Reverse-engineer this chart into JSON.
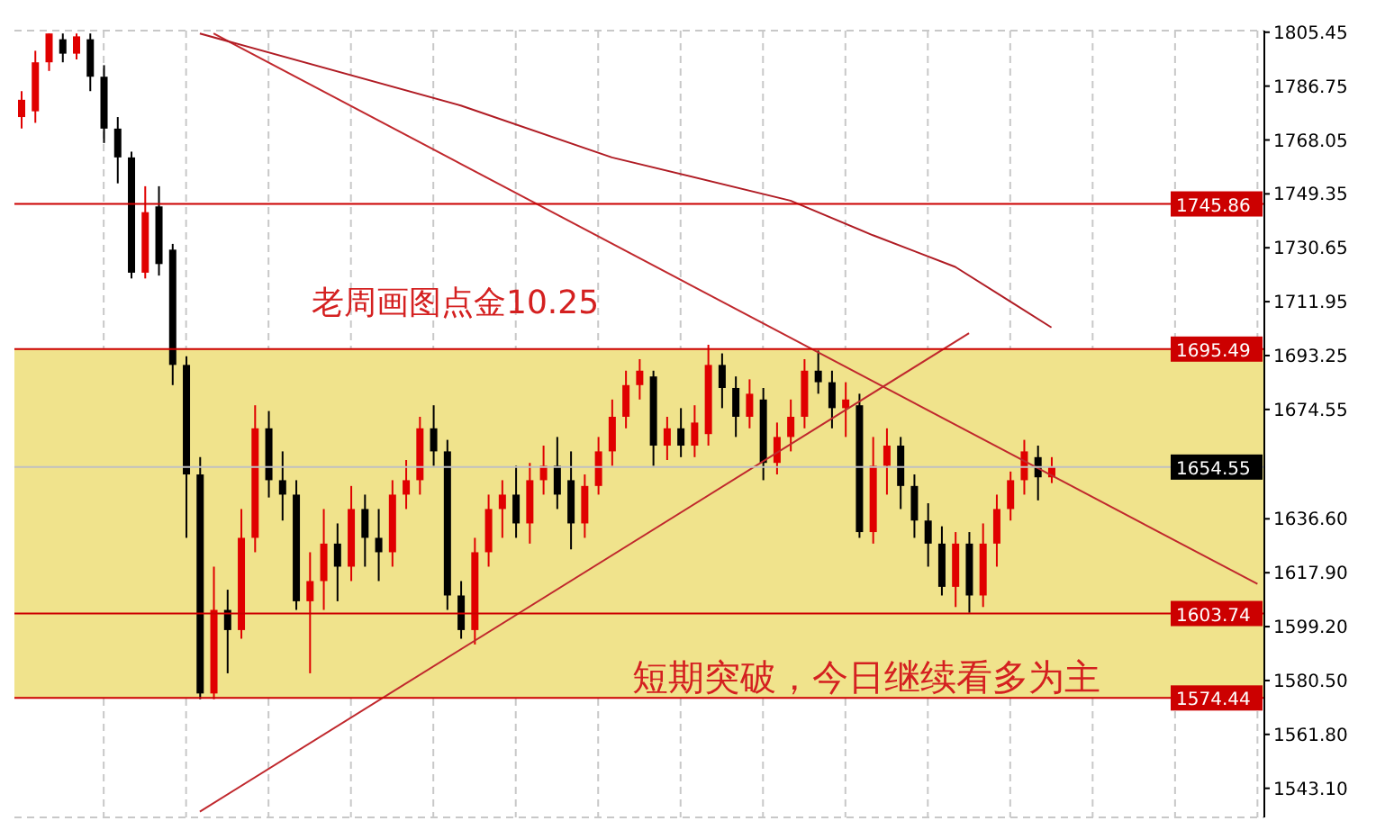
{
  "chart_data": {
    "type": "candlestick",
    "categories": [
      null,
      null,
      null,
      null,
      null,
      null,
      null,
      null,
      null,
      null,
      null,
      null,
      null,
      null,
      null,
      null,
      null,
      null,
      null,
      null,
      null,
      null,
      null,
      null,
      null,
      null,
      null,
      null,
      null,
      null,
      null,
      null,
      null,
      null,
      null,
      null,
      null,
      null,
      null,
      null,
      null,
      null,
      null,
      null,
      null,
      null,
      null,
      null,
      null,
      null,
      null,
      null,
      null,
      null,
      null,
      null,
      null,
      null,
      null,
      null,
      null,
      null,
      null,
      null,
      null,
      null,
      null,
      null,
      null,
      null,
      null,
      null,
      null,
      null,
      null,
      null,
      null,
      null,
      null,
      null,
      null,
      null,
      null,
      null,
      null,
      null,
      null,
      null,
      null,
      null,
      null
    ],
    "ohlc": [
      [
        1776,
        1785,
        1772,
        1782
      ],
      [
        1778,
        1799,
        1774,
        1795
      ],
      [
        1795,
        1805,
        1792,
        1805
      ],
      [
        1803,
        1805,
        1795,
        1798
      ],
      [
        1798,
        1805,
        1796,
        1804
      ],
      [
        1803,
        1805,
        1785,
        1790
      ],
      [
        1790,
        1794,
        1767,
        1772
      ],
      [
        1772,
        1776,
        1753,
        1762
      ],
      [
        1762,
        1764,
        1720,
        1722
      ],
      [
        1722,
        1752,
        1720,
        1743
      ],
      [
        1745,
        1752,
        1721,
        1725
      ],
      [
        1730,
        1732,
        1683,
        1690
      ],
      [
        1690,
        1693,
        1630,
        1652
      ],
      [
        1652,
        1658,
        1574,
        1576
      ],
      [
        1576,
        1620,
        1574,
        1605
      ],
      [
        1605,
        1612,
        1583,
        1598
      ],
      [
        1598,
        1640,
        1595,
        1630
      ],
      [
        1630,
        1676,
        1625,
        1668
      ],
      [
        1668,
        1674,
        1644,
        1650
      ],
      [
        1650,
        1660,
        1636,
        1645
      ],
      [
        1645,
        1650,
        1605,
        1608
      ],
      [
        1608,
        1625,
        1583,
        1615
      ],
      [
        1615,
        1640,
        1605,
        1628
      ],
      [
        1628,
        1635,
        1608,
        1620
      ],
      [
        1620,
        1648,
        1615,
        1640
      ],
      [
        1640,
        1645,
        1620,
        1630
      ],
      [
        1630,
        1640,
        1615,
        1625
      ],
      [
        1625,
        1650,
        1620,
        1645
      ],
      [
        1645,
        1657,
        1640,
        1650
      ],
      [
        1650,
        1672,
        1645,
        1668
      ],
      [
        1668,
        1676,
        1655,
        1660
      ],
      [
        1660,
        1664,
        1605,
        1610
      ],
      [
        1610,
        1615,
        1595,
        1598
      ],
      [
        1598,
        1630,
        1593,
        1625
      ],
      [
        1625,
        1645,
        1620,
        1640
      ],
      [
        1640,
        1650,
        1630,
        1645
      ],
      [
        1645,
        1655,
        1630,
        1635
      ],
      [
        1635,
        1656,
        1628,
        1650
      ],
      [
        1650,
        1662,
        1645,
        1655
      ],
      [
        1655,
        1665,
        1640,
        1645
      ],
      [
        1650,
        1660,
        1626,
        1635
      ],
      [
        1635,
        1652,
        1630,
        1648
      ],
      [
        1648,
        1665,
        1645,
        1660
      ],
      [
        1660,
        1678,
        1655,
        1672
      ],
      [
        1672,
        1688,
        1668,
        1683
      ],
      [
        1683,
        1692,
        1678,
        1688
      ],
      [
        1686,
        1688,
        1655,
        1662
      ],
      [
        1662,
        1672,
        1657,
        1668
      ],
      [
        1668,
        1675,
        1658,
        1662
      ],
      [
        1662,
        1676,
        1658,
        1670
      ],
      [
        1666,
        1697,
        1662,
        1690
      ],
      [
        1690,
        1694,
        1675,
        1682
      ],
      [
        1682,
        1686,
        1665,
        1672
      ],
      [
        1672,
        1685,
        1668,
        1680
      ],
      [
        1678,
        1682,
        1650,
        1656
      ],
      [
        1656,
        1670,
        1652,
        1665
      ],
      [
        1665,
        1678,
        1660,
        1672
      ],
      [
        1672,
        1692,
        1668,
        1688
      ],
      [
        1688,
        1695,
        1680,
        1684
      ],
      [
        1684,
        1688,
        1668,
        1675
      ],
      [
        1675,
        1684,
        1665,
        1678
      ],
      [
        1676,
        1680,
        1630,
        1632
      ],
      [
        1632,
        1665,
        1628,
        1655
      ],
      [
        1655,
        1668,
        1645,
        1662
      ],
      [
        1662,
        1665,
        1640,
        1648
      ],
      [
        1648,
        1652,
        1630,
        1636
      ],
      [
        1636,
        1642,
        1620,
        1628
      ],
      [
        1628,
        1634,
        1610,
        1613
      ],
      [
        1613,
        1632,
        1606,
        1628
      ],
      [
        1628,
        1632,
        1604,
        1610
      ],
      [
        1610,
        1635,
        1606,
        1628
      ],
      [
        1628,
        1645,
        1620,
        1640
      ],
      [
        1640,
        1653,
        1636,
        1650
      ],
      [
        1650,
        1664,
        1645,
        1660
      ],
      [
        1658,
        1662,
        1643,
        1651
      ],
      [
        1651,
        1658,
        1649,
        1654.55
      ],
      null,
      null,
      null,
      null,
      null,
      null,
      null,
      null,
      null,
      null,
      null,
      null,
      null,
      null,
      null
    ],
    "colors": [
      "#e00000",
      "#e00000",
      "#e00000",
      "#000000",
      "#e00000",
      "#000000",
      "#000000",
      "#000000",
      "#000000",
      "#e00000",
      "#000000",
      "#000000",
      "#000000",
      "#000000",
      "#e00000",
      "#000000",
      "#e00000",
      "#e00000",
      "#000000",
      "#000000",
      "#000000",
      "#e00000",
      "#e00000",
      "#000000",
      "#e00000",
      "#000000",
      "#000000",
      "#e00000",
      "#e00000",
      "#e00000",
      "#000000",
      "#000000",
      "#000000",
      "#e00000",
      "#e00000",
      "#e00000",
      "#000000",
      "#e00000",
      "#e00000",
      "#000000",
      "#000000",
      "#e00000",
      "#e00000",
      "#e00000",
      "#e00000",
      "#e00000",
      "#000000",
      "#e00000",
      "#000000",
      "#e00000",
      "#e00000",
      "#000000",
      "#000000",
      "#e00000",
      "#000000",
      "#e00000",
      "#e00000",
      "#e00000",
      "#000000",
      "#000000",
      "#e00000",
      "#000000",
      "#e00000",
      "#e00000",
      "#000000",
      "#000000",
      "#000000",
      "#000000",
      "#e00000",
      "#000000",
      "#e00000",
      "#e00000",
      "#e00000",
      "#e00000",
      "#000000",
      "#e00000",
      null,
      null,
      null,
      null,
      null,
      null,
      null,
      null,
      null,
      null,
      null,
      null,
      null,
      null,
      null
    ],
    "series": [
      {
        "type": "line",
        "color": "#c0282d",
        "values": [
          null,
          null,
          null,
          null,
          null,
          null,
          null,
          null,
          null,
          null,
          null,
          null,
          null,
          null,
          1805,
          null,
          null,
          null,
          null,
          null,
          null,
          null,
          null,
          null,
          null,
          null,
          null,
          null,
          null,
          null,
          null,
          null,
          null,
          null,
          null,
          null,
          null,
          null,
          null,
          null,
          null,
          null,
          null,
          null,
          null,
          null,
          null,
          null,
          null,
          null,
          null,
          null,
          null,
          null,
          null,
          null,
          null,
          null,
          null,
          null,
          null,
          null,
          null,
          null,
          null,
          null,
          null,
          null,
          null,
          null,
          null,
          null,
          null,
          null,
          null,
          null,
          null,
          null,
          null,
          null,
          null,
          null,
          null,
          null,
          null,
          null,
          null,
          null,
          null,
          null,
          1614
        ]
      },
      {
        "type": "line",
        "color": "#c0282d",
        "values": [
          null,
          null,
          null,
          null,
          null,
          null,
          null,
          null,
          null,
          null,
          null,
          null,
          null,
          1535,
          null,
          null,
          null,
          null,
          null,
          null,
          null,
          null,
          null,
          null,
          null,
          null,
          null,
          null,
          null,
          null,
          null,
          null,
          null,
          null,
          null,
          null,
          null,
          null,
          null,
          null,
          null,
          null,
          null,
          null,
          null,
          null,
          null,
          null,
          null,
          null,
          null,
          null,
          null,
          null,
          null,
          null,
          null,
          null,
          null,
          null,
          null,
          null,
          null,
          null,
          null,
          null,
          null,
          null,
          null,
          1701,
          null,
          null,
          null,
          null,
          null,
          null,
          null,
          null,
          null,
          null,
          null,
          null,
          null,
          null,
          null,
          null,
          null,
          null,
          null,
          null,
          null
        ]
      },
      {
        "type": "line",
        "color": "#b01c24",
        "values": [
          null,
          null,
          null,
          null,
          null,
          null,
          null,
          null,
          null,
          null,
          null,
          null,
          null,
          1805,
          null,
          null,
          null,
          null,
          null,
          null,
          null,
          null,
          null,
          null,
          null,
          null,
          null,
          null,
          null,
          null,
          null,
          null,
          1780,
          null,
          null,
          null,
          null,
          null,
          null,
          null,
          null,
          null,
          null,
          1762,
          null,
          null,
          null,
          null,
          null,
          null,
          null,
          null,
          null,
          null,
          null,
          null,
          1747,
          null,
          null,
          null,
          null,
          null,
          1735,
          null,
          null,
          null,
          null,
          null,
          1724,
          null,
          null,
          null,
          1712,
          null,
          null,
          1703,
          null,
          null,
          null,
          null,
          null,
          null,
          null,
          null,
          null,
          null,
          null,
          null,
          null,
          null,
          null
        ]
      }
    ],
    "ylim": [
      1533,
      1806
    ],
    "yticks": [
      1805.45,
      1786.75,
      1768.05,
      1749.35,
      1730.65,
      1711.95,
      1693.25,
      1674.55,
      {
        "value": 1636.6,
        "label": "1636.60"
      },
      {
        "value": 1617.9,
        "label": "1617.90"
      },
      {
        "value": 1599.2,
        "label": "1599.20"
      },
      {
        "value": 1580.5,
        "label": "1580.50"
      },
      {
        "value": 1561.8,
        "label": "1561.80"
      },
      {
        "value": 1543.1,
        "label": "1543.10"
      }
    ],
    "ref_lines": [
      {
        "axis": "y",
        "value": 1745.86,
        "label": "1745.86",
        "color": "#cc0000"
      },
      {
        "axis": "y",
        "value": 1695.49,
        "label": "1695.49",
        "color": "#cc0000"
      },
      {
        "axis": "y",
        "value": 1654.55,
        "label": "1654.55",
        "color": "#c0c0c0"
      },
      {
        "axis": "y",
        "value": 1603.74,
        "label": "1603.74",
        "color": "#cc0000"
      },
      {
        "axis": "y",
        "value": 1574.44,
        "label": "1574.44",
        "color": "#cc0000"
      }
    ],
    "bands": [
      {
        "axis": "y",
        "from": 1574.44,
        "to": 1695.49,
        "color": "#f0e38c"
      }
    ],
    "annotations": [
      "老周画图点金10.25",
      "短期突破，今日继续看多为主"
    ],
    "grid": true,
    "tick_labels": "y"
  }
}
